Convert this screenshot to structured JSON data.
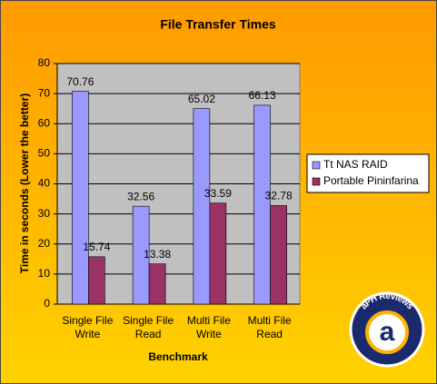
{
  "chart_data": {
    "type": "bar",
    "title": "File Transfer Times",
    "x_label": "Benchmark",
    "y_label": "Time in seconds (Lower the better)",
    "categories": [
      "Single File Write",
      "Single File Read",
      "Multi File Write",
      "Multi File Read"
    ],
    "series": [
      {
        "name": "Tt NAS RAID",
        "color": "#9999ff",
        "values": [
          70.76,
          32.56,
          65.02,
          66.13
        ]
      },
      {
        "name": "Portable Pininfarina",
        "color": "#993366",
        "values": [
          15.74,
          13.38,
          33.59,
          32.78
        ]
      }
    ],
    "ylim": [
      0,
      80
    ],
    "yticks": [
      0,
      10,
      20,
      30,
      40,
      50,
      60,
      70,
      80
    ],
    "grid": true,
    "legend": "right",
    "logo_letter": "a",
    "logo_text": "aPH Reviews"
  }
}
